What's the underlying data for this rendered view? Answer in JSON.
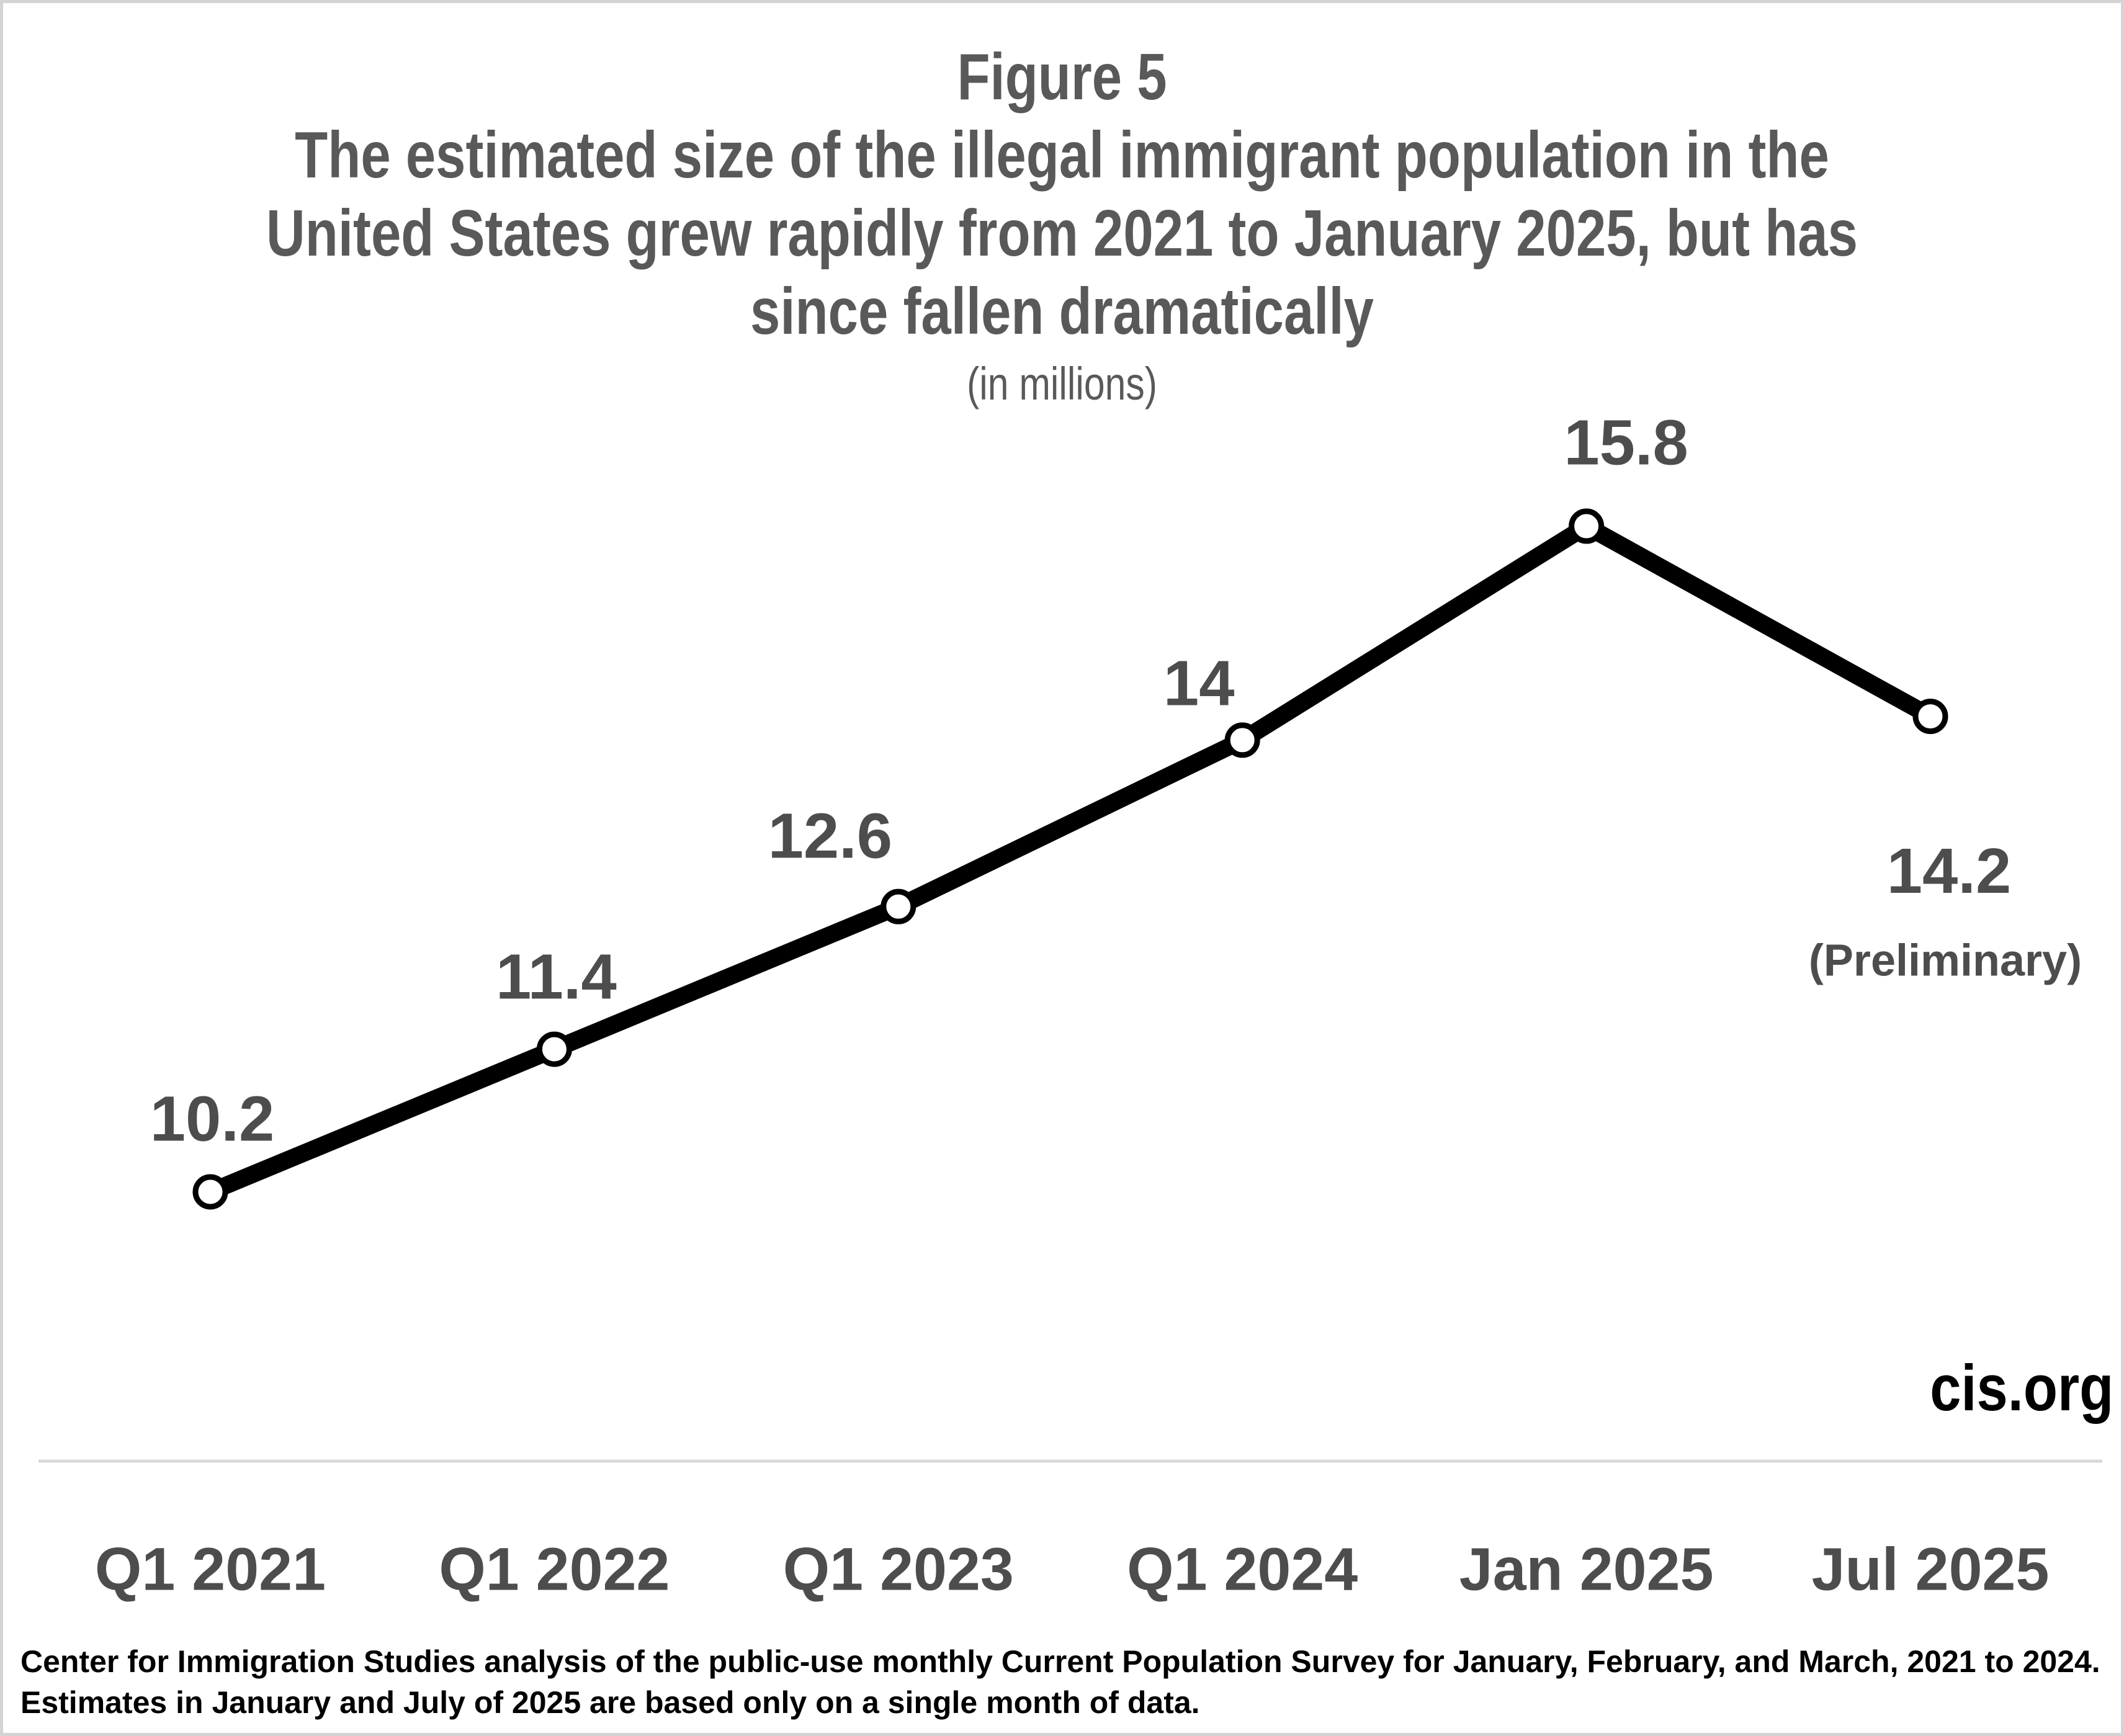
{
  "figure": {
    "figure_label": "Figure 5",
    "title_line1": "The estimated size of the illegal immigrant population in the",
    "title_line2": "United States grew rapidly from 2021 to January 2025, but has",
    "title_line3": "since fallen dramatically",
    "units_note": "(in millions)"
  },
  "chart_data": {
    "type": "line",
    "title": "Figure 5. The estimated size of the illegal immigrant population in the United States grew rapidly from 2021 to January 2025, but has since fallen dramatically",
    "subtitle": "(in millions)",
    "categories": [
      "Q1 2021",
      "Q1 2022",
      "Q1 2023",
      "Q1 2024",
      "Jan 2025",
      "Jul 2025"
    ],
    "values": [
      10.2,
      11.4,
      12.6,
      14,
      15.8,
      14.2
    ],
    "point_labels": [
      "10.2",
      "11.4",
      "12.6",
      "14",
      "15.8",
      "14.2"
    ],
    "last_point_note": "(Preliminary)",
    "ylim": [
      8,
      16
    ],
    "grid": false,
    "legend": false,
    "xlabel": "",
    "ylabel": ""
  },
  "branding": {
    "label": "cis.org"
  },
  "footnote": {
    "line1": "Center for Immigration Studies analysis of the public-use monthly Current Population Survey for January, February, and March, 2021 to 2024.",
    "line2": "Estimates in January and July of 2025 are based only on a single month of data."
  },
  "colors": {
    "line": "#000000",
    "marker_fill": "#ffffff",
    "marker_ring": "#000000",
    "point_label_gray": "#4d4d4d",
    "axis_label_gray": "#4d4d4d",
    "title_gray": "#595959",
    "axis_line": "#d9d9d9",
    "border": "#d4d4d4",
    "footnote_black": "#000000"
  }
}
